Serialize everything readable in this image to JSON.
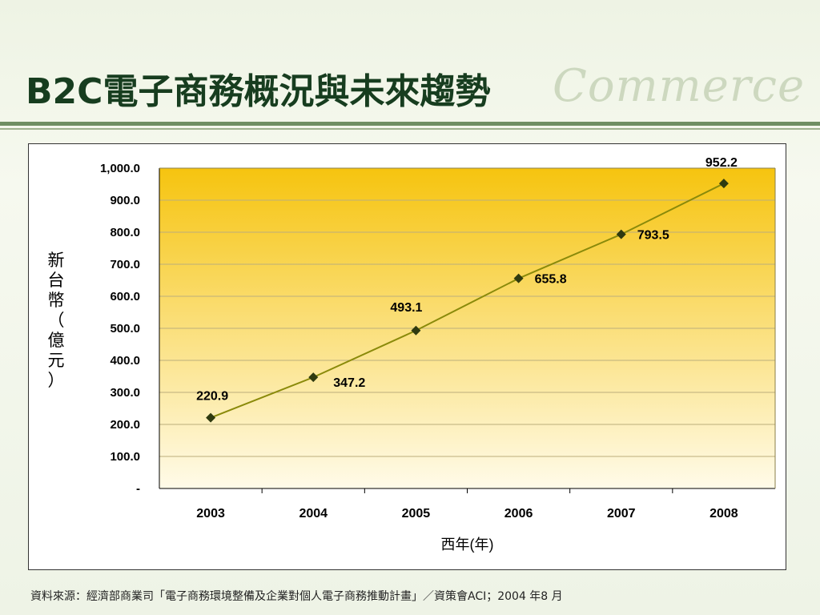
{
  "slide": {
    "title": "B2C電子商務概況與未來趨勢",
    "watermark": "Commerce",
    "source": "資料來源：經濟部商業司「電子商務環境整備及企業對個人電子商務推動計畫」／資策會ACI；2004 年8 月"
  },
  "colors": {
    "title": "#173d1f",
    "line": "#8a8a0a",
    "marker": "#2f3a10",
    "plot_top": "#f6c40f",
    "plot_bottom": "#fffbe9"
  },
  "chart_data": {
    "type": "line",
    "x": [
      "2003",
      "2004",
      "2005",
      "2006",
      "2007",
      "2008"
    ],
    "series": [
      {
        "values": [
          220.9,
          347.2,
          493.1,
          655.8,
          793.5,
          952.2
        ]
      }
    ],
    "data_labels": [
      "220.9",
      "347.2",
      "493.1",
      "655.8",
      "793.5",
      "952.2"
    ],
    "y_ticks": [
      "-",
      "100.0",
      "200.0",
      "300.0",
      "400.0",
      "500.0",
      "600.0",
      "700.0",
      "800.0",
      "900.0",
      "1,000.0"
    ],
    "ylim": [
      0,
      1000
    ],
    "xlabel": "西年(年)",
    "ylabel": "新台幣（億元）",
    "grid": true,
    "legend": "none"
  }
}
